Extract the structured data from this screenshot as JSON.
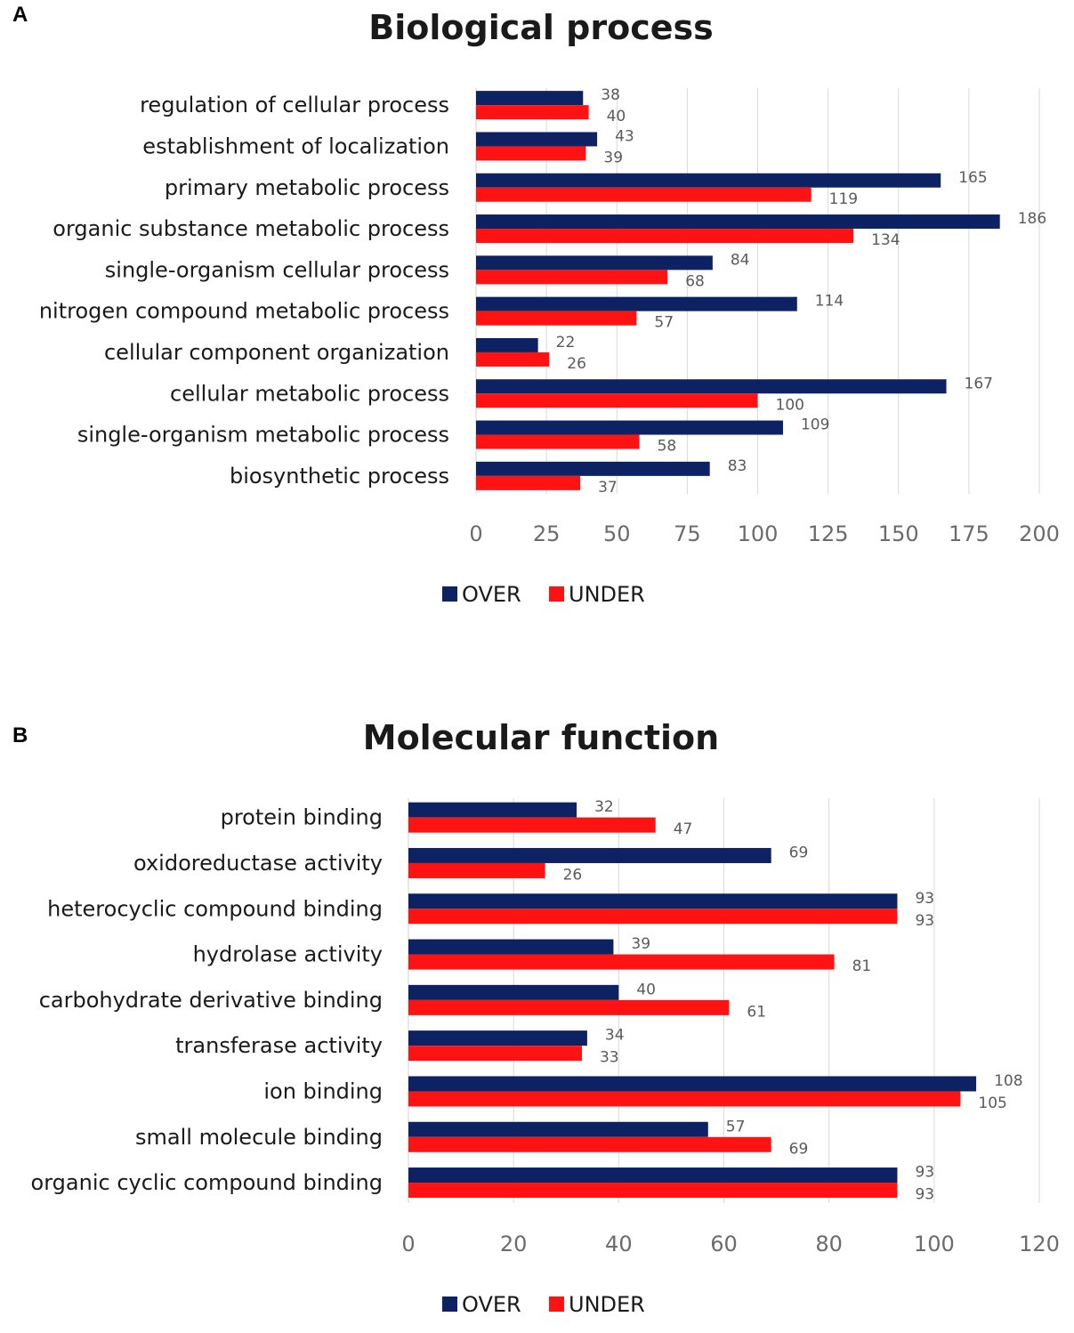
{
  "colors": {
    "over": "#0d2263",
    "under": "#ff1212"
  },
  "chart_data": [
    {
      "panel": "A",
      "type": "bar",
      "orientation": "horizontal",
      "title": "Biological process",
      "categories": [
        "regulation of cellular process",
        "establishment of localization",
        "primary metabolic process",
        "organic substance metabolic process",
        "single-organism cellular process",
        "nitrogen compound metabolic process",
        "cellular component organization",
        "cellular metabolic process",
        "single-organism metabolic process",
        "biosynthetic process"
      ],
      "series": [
        {
          "name": "OVER",
          "values": [
            38,
            43,
            165,
            186,
            84,
            114,
            22,
            167,
            109,
            83
          ]
        },
        {
          "name": "UNDER",
          "values": [
            40,
            39,
            119,
            134,
            68,
            57,
            26,
            100,
            58,
            37
          ]
        }
      ],
      "xlim": [
        0,
        200
      ],
      "xticks": [
        0,
        25,
        50,
        75,
        100,
        125,
        150,
        175,
        200
      ],
      "grid": true,
      "legend": "bottom"
    },
    {
      "panel": "B",
      "type": "bar",
      "orientation": "horizontal",
      "title": "Molecular function",
      "categories": [
        "protein binding",
        "oxidoreductase activity",
        "heterocyclic compound binding",
        "hydrolase activity",
        "carbohydrate derivative binding",
        "transferase activity",
        "ion binding",
        "small molecule binding",
        "organic cyclic compound binding"
      ],
      "series": [
        {
          "name": "OVER",
          "values": [
            32,
            69,
            93,
            39,
            40,
            34,
            108,
            57,
            93
          ]
        },
        {
          "name": "UNDER",
          "values": [
            47,
            26,
            93,
            81,
            61,
            33,
            105,
            69,
            93
          ]
        }
      ],
      "xlim": [
        0,
        120
      ],
      "xticks": [
        0,
        20,
        40,
        60,
        80,
        100,
        120
      ],
      "grid": true,
      "legend": "bottom"
    }
  ]
}
